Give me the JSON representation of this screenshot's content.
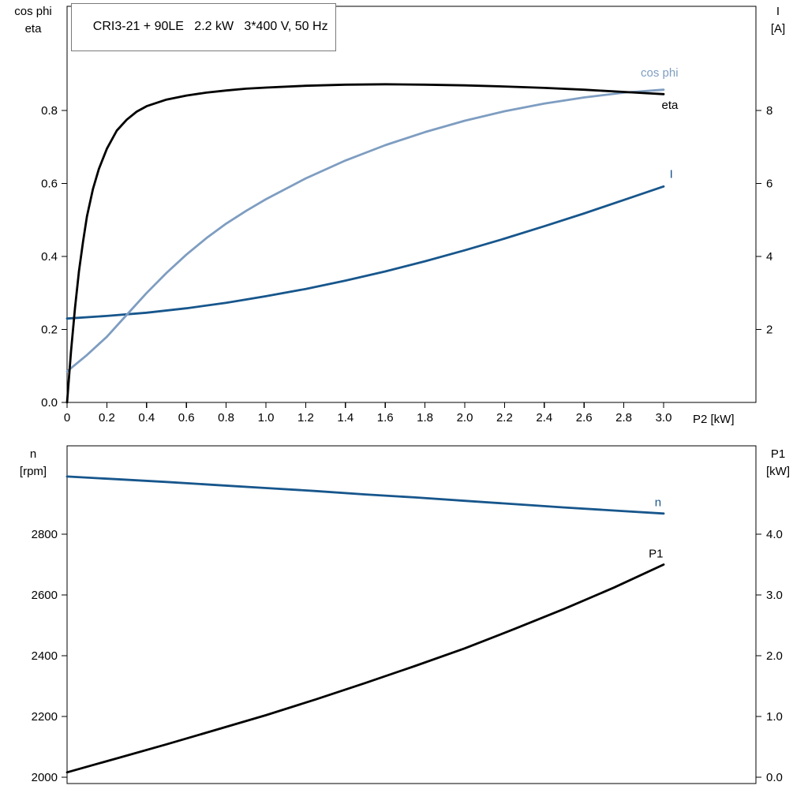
{
  "header": {
    "title": "CRI3-21 + 90LE   2.2 kW   3*400 V, 50 Hz"
  },
  "axis_titles": {
    "top_left_1": "cos phi",
    "top_left_2": "eta",
    "top_right_1": "I",
    "top_right_2": "[A]",
    "x_label": "P2 [kW]",
    "bottom_left_1": "n",
    "bottom_left_2": "[rpm]",
    "bottom_right_1": "P1",
    "bottom_right_2": "[kW]"
  },
  "colors": {
    "black": "#000000",
    "dark_blue": "#17568c",
    "light_blue": "#7e9dc1",
    "frame": "#000000"
  },
  "chart_data": [
    {
      "type": "line",
      "title": "CRI3-21 + 90LE   2.2 kW   3*400 V, 50 Hz",
      "grid": false,
      "legend": "inline-labels",
      "x_axis": {
        "label": "P2 [kW]",
        "range": [
          0,
          3.4643
        ],
        "ticks": [
          0,
          0.2,
          0.4,
          0.6,
          0.8,
          1.0,
          1.2,
          1.4,
          1.6,
          1.8,
          2.0,
          2.2,
          2.4,
          2.6,
          2.8,
          3.0
        ],
        "tick_labels": [
          "0",
          "0.2",
          "0.4",
          "0.6",
          "0.8",
          "1.0",
          "1.2",
          "1.4",
          "1.6",
          "1.8",
          "2.0",
          "2.2",
          "2.4",
          "2.6",
          "2.8",
          "3.0"
        ]
      },
      "left_axis": {
        "label": "cos phi / eta",
        "range": [
          0,
          1.0857
        ],
        "ticks": [
          0.0,
          0.2,
          0.4,
          0.6,
          0.8
        ],
        "tick_labels": [
          "0.0",
          "0.2",
          "0.4",
          "0.6",
          "0.8"
        ]
      },
      "right_axis": {
        "label": "I [A]",
        "range": [
          0,
          10.857
        ],
        "ticks": [
          2,
          4,
          6,
          8
        ],
        "tick_labels": [
          "2",
          "4",
          "6",
          "8"
        ]
      },
      "series": [
        {
          "name": "I",
          "axis": "right",
          "color": "#17568c",
          "label_anchor": [
            3.03,
            6.15
          ],
          "x": [
            0,
            0.2,
            0.4,
            0.6,
            0.8,
            1.0,
            1.2,
            1.4,
            1.6,
            1.8,
            2.0,
            2.2,
            2.4,
            2.6,
            2.8,
            3.0
          ],
          "y": [
            2.3,
            2.37,
            2.46,
            2.58,
            2.73,
            2.91,
            3.11,
            3.34,
            3.59,
            3.87,
            4.17,
            4.49,
            4.83,
            5.18,
            5.55,
            5.92
          ]
        },
        {
          "name": "cos phi",
          "axis": "left",
          "color": "#7e9dc1",
          "label_anchor": [
            2.885,
            0.893
          ],
          "x": [
            0,
            0.1,
            0.2,
            0.3,
            0.4,
            0.5,
            0.6,
            0.7,
            0.8,
            0.9,
            1.0,
            1.2,
            1.4,
            1.6,
            1.8,
            2.0,
            2.2,
            2.4,
            2.6,
            2.8,
            3.0
          ],
          "y": [
            0.085,
            0.13,
            0.18,
            0.24,
            0.3,
            0.355,
            0.405,
            0.45,
            0.49,
            0.525,
            0.557,
            0.614,
            0.663,
            0.705,
            0.741,
            0.772,
            0.798,
            0.819,
            0.836,
            0.849,
            0.857
          ]
        },
        {
          "name": "eta",
          "axis": "left",
          "color": "#000000",
          "label_anchor": [
            2.99,
            0.805
          ],
          "x": [
            0,
            0.02,
            0.04,
            0.06,
            0.08,
            0.1,
            0.13,
            0.16,
            0.2,
            0.25,
            0.3,
            0.35,
            0.4,
            0.5,
            0.6,
            0.7,
            0.8,
            0.9,
            1.0,
            1.2,
            1.4,
            1.6,
            1.8,
            2.0,
            2.2,
            2.4,
            2.6,
            2.8,
            3.0
          ],
          "y": [
            0,
            0.14,
            0.26,
            0.36,
            0.44,
            0.51,
            0.585,
            0.64,
            0.695,
            0.745,
            0.775,
            0.797,
            0.812,
            0.83,
            0.841,
            0.849,
            0.855,
            0.86,
            0.863,
            0.868,
            0.871,
            0.872,
            0.871,
            0.869,
            0.866,
            0.862,
            0.857,
            0.851,
            0.845
          ]
        }
      ]
    },
    {
      "type": "line",
      "title": "",
      "grid": false,
      "legend": "inline-labels",
      "x_axis": {
        "label": "",
        "range": [
          0,
          3.4643
        ],
        "ticks": [],
        "tick_labels": []
      },
      "left_axis": {
        "label": "n [rpm]",
        "range": [
          1979,
          3091
        ],
        "ticks": [
          2000,
          2200,
          2400,
          2600,
          2800
        ],
        "tick_labels": [
          "2000",
          "2200",
          "2400",
          "2600",
          "2800"
        ]
      },
      "right_axis": {
        "label": "P1 [kW]",
        "range": [
          -0.105,
          5.455
        ],
        "ticks": [
          0.0,
          1.0,
          2.0,
          3.0,
          4.0
        ],
        "tick_labels": [
          "0.0",
          "1.0",
          "2.0",
          "3.0",
          "4.0"
        ]
      },
      "series": [
        {
          "name": "n",
          "axis": "left",
          "color": "#17568c",
          "label_anchor": [
            2.955,
            2892
          ],
          "x": [
            0,
            0.25,
            0.5,
            0.75,
            1.0,
            1.25,
            1.5,
            1.75,
            2.0,
            2.25,
            2.5,
            2.75,
            3.0
          ],
          "y": [
            2990,
            2981,
            2972,
            2962,
            2952,
            2942,
            2931,
            2921,
            2910,
            2899,
            2888,
            2878,
            2868
          ]
        },
        {
          "name": "P1",
          "axis": "right",
          "color": "#000000",
          "label_anchor": [
            2.925,
            3.62
          ],
          "x": [
            0,
            0.25,
            0.5,
            0.75,
            1.0,
            1.25,
            1.5,
            1.75,
            2.0,
            2.25,
            2.5,
            2.75,
            3.0
          ],
          "y": [
            0.08,
            0.31,
            0.54,
            0.78,
            1.02,
            1.28,
            1.55,
            1.83,
            2.12,
            2.44,
            2.77,
            3.12,
            3.5
          ]
        }
      ]
    }
  ]
}
